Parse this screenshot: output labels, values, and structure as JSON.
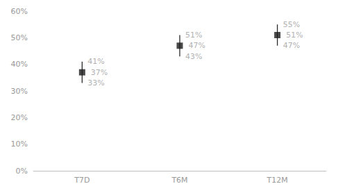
{
  "chart_data": {
    "type": "errorbar",
    "categories": [
      "T7D",
      "T6M",
      "T12M"
    ],
    "values": [
      37,
      47,
      51
    ],
    "value_labels": [
      "37%",
      "47%",
      "51%"
    ],
    "upper": [
      41,
      51,
      55
    ],
    "upper_labels": [
      "41%",
      "51%",
      "55%"
    ],
    "lower": [
      33,
      43,
      47
    ],
    "lower_labels": [
      "33%",
      "43%",
      "47%"
    ],
    "data_labels": true,
    "marker": "square",
    "color": "#1a1a1a",
    "ylim": [
      0,
      60
    ],
    "yticks": [
      {
        "value": 0,
        "label": "0%"
      },
      {
        "value": 10,
        "label": "10%"
      },
      {
        "value": 20,
        "label": "20%"
      },
      {
        "value": 30,
        "label": "30%"
      },
      {
        "value": 40,
        "label": "40%"
      },
      {
        "value": 50,
        "label": "50%"
      },
      {
        "value": 60,
        "label": "60%"
      }
    ],
    "grid": false
  }
}
